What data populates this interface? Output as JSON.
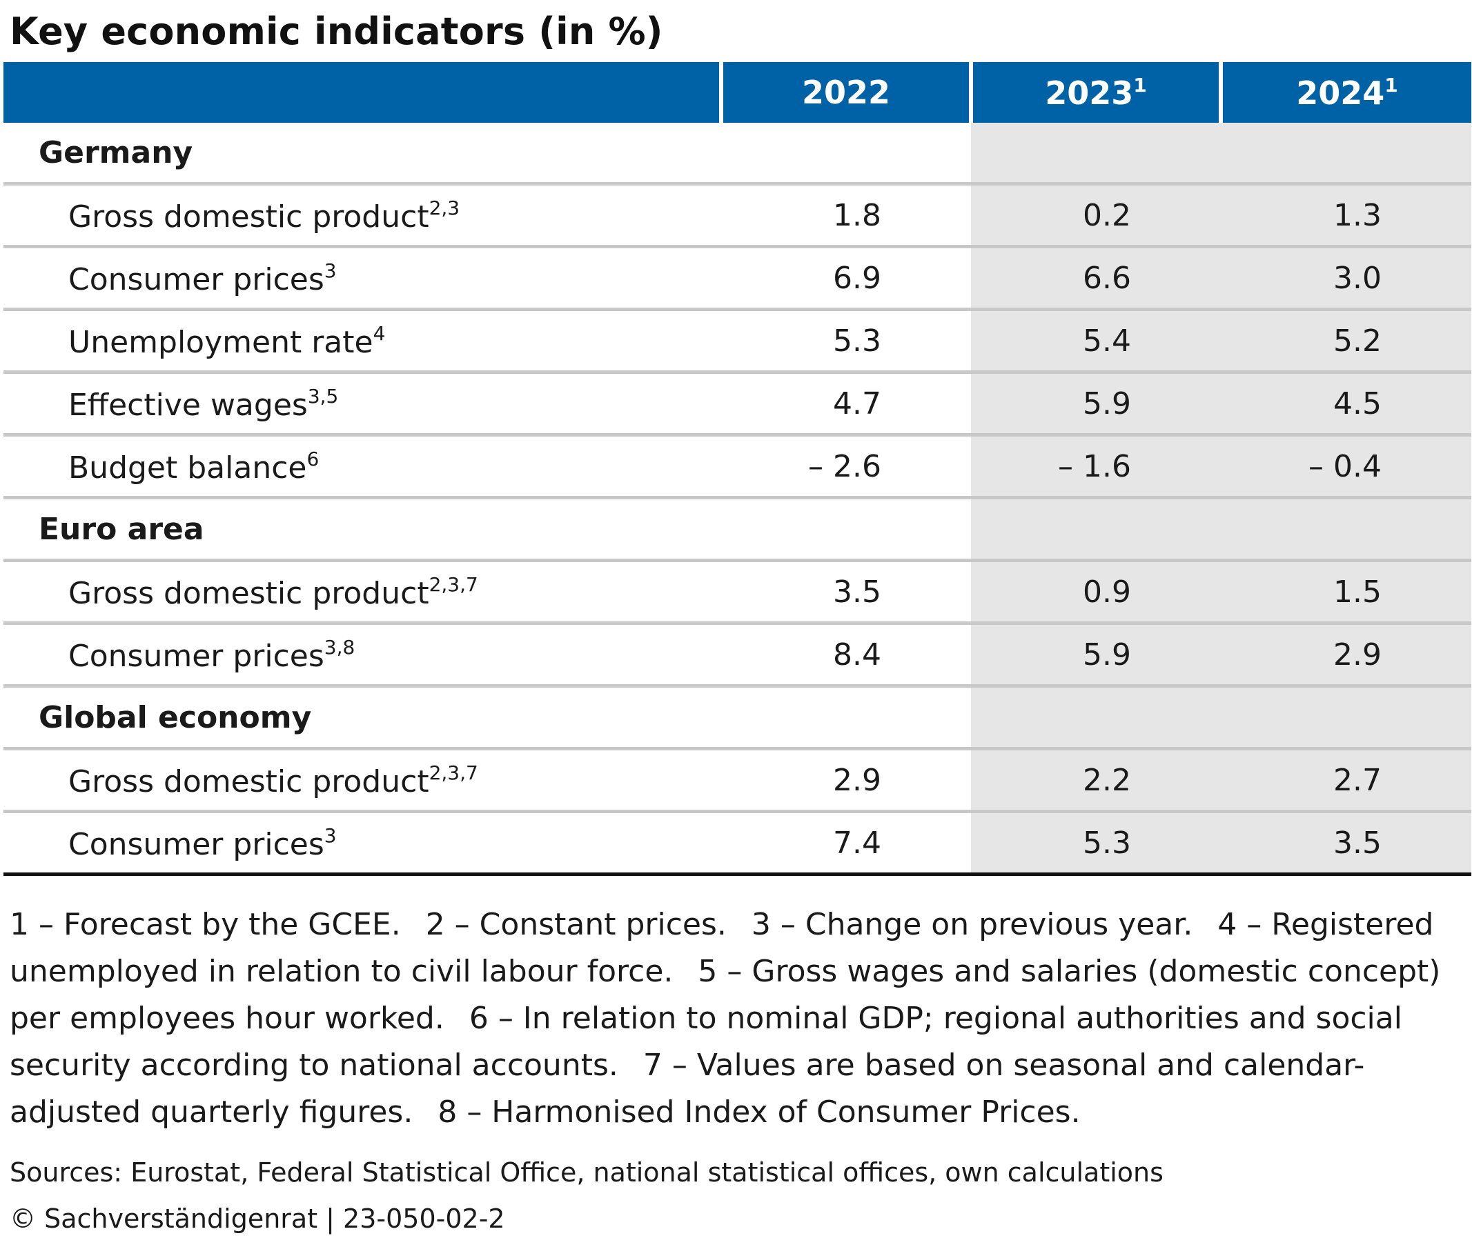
{
  "title": "Key economic indicators (in %)",
  "columns": [
    {
      "year": "2022",
      "footnote": ""
    },
    {
      "year": "2023",
      "footnote": "1"
    },
    {
      "year": "2024",
      "footnote": "1"
    }
  ],
  "sections": [
    {
      "name": "Germany",
      "rows": [
        {
          "label": "Gross domestic product",
          "footnote": "2,3",
          "values": [
            "1.8",
            "0.2",
            "1.3"
          ]
        },
        {
          "label": "Consumer prices",
          "footnote": "3",
          "values": [
            "6.9",
            "6.6",
            "3.0"
          ]
        },
        {
          "label": "Unemployment rate",
          "footnote": "4",
          "values": [
            "5.3",
            "5.4",
            "5.2"
          ]
        },
        {
          "label": "Effective wages",
          "footnote": "3,5",
          "values": [
            "4.7",
            "5.9",
            "4.5"
          ]
        },
        {
          "label": "Budget balance",
          "footnote": "6",
          "values": [
            "– 2.6",
            "– 1.6",
            "– 0.4"
          ]
        }
      ]
    },
    {
      "name": "Euro area",
      "rows": [
        {
          "label": "Gross domestic product",
          "footnote": "2,3,7",
          "values": [
            "3.5",
            "0.9",
            "1.5"
          ]
        },
        {
          "label": "Consumer prices",
          "footnote": "3,8",
          "values": [
            "8.4",
            "5.9",
            "2.9"
          ]
        }
      ]
    },
    {
      "name": "Global economy",
      "rows": [
        {
          "label": "Gross domestic product",
          "footnote": "2,3,7",
          "values": [
            "2.9",
            "2.2",
            "2.7"
          ]
        },
        {
          "label": "Consumer prices",
          "footnote": "3",
          "values": [
            "7.4",
            "5.3",
            "3.5"
          ]
        }
      ]
    }
  ],
  "footnotes": [
    "1 – Forecast by the GCEE.",
    "2 – Constant prices.",
    "3 – Change on previous year.",
    "4 – Registered unemployed in relation to civil labour force.",
    "5 – Gross wages and salaries (domestic concept) per employees hour worked.",
    "6 – In relation to nominal GDP; regional authorities and social security according to national accounts.",
    "7 – Values are based on seasonal and calendar-adjusted quarterly figures.",
    "8 – Harmonised Index of Consumer Prices."
  ],
  "sources": "Sources: Eurostat, Federal Statistical Office, national statistical offices, own calculations",
  "copyright": "© Sachverständigenrat | 23-050-02-2",
  "colors": {
    "header_bg": "#0062a6",
    "forecast_bg": "#e6e6e6",
    "row_rule": "#c8c8c8"
  }
}
